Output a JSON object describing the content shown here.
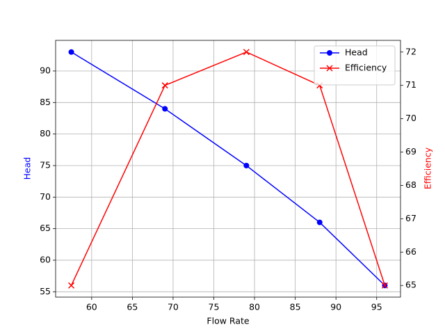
{
  "chart_data": {
    "type": "line",
    "xlabel": "Flow Rate",
    "ylabel": "Head",
    "y2label": "Efficiency",
    "x": [
      57.5,
      69,
      79,
      88,
      96
    ],
    "series": [
      {
        "name": "Head",
        "color": "#0000ff",
        "marker": "o",
        "values": [
          93,
          84,
          75,
          66,
          56
        ]
      },
      {
        "name": "Efficiency",
        "color": "#ff0000",
        "marker": "x",
        "axis": "y2",
        "values": [
          65,
          71,
          72,
          71,
          65
        ]
      }
    ],
    "xlim": [
      55.575,
      97.925
    ],
    "xticks": [
      60,
      65,
      70,
      75,
      80,
      85,
      90,
      95
    ],
    "ylim": [
      54.15,
      94.85
    ],
    "yticks": [
      55,
      60,
      65,
      70,
      75,
      80,
      85,
      90
    ],
    "y2lim": [
      64.65,
      72.35
    ],
    "y2ticks": [
      65,
      66,
      67,
      68,
      69,
      70,
      71,
      72
    ],
    "grid": true,
    "legend": "upper right"
  }
}
